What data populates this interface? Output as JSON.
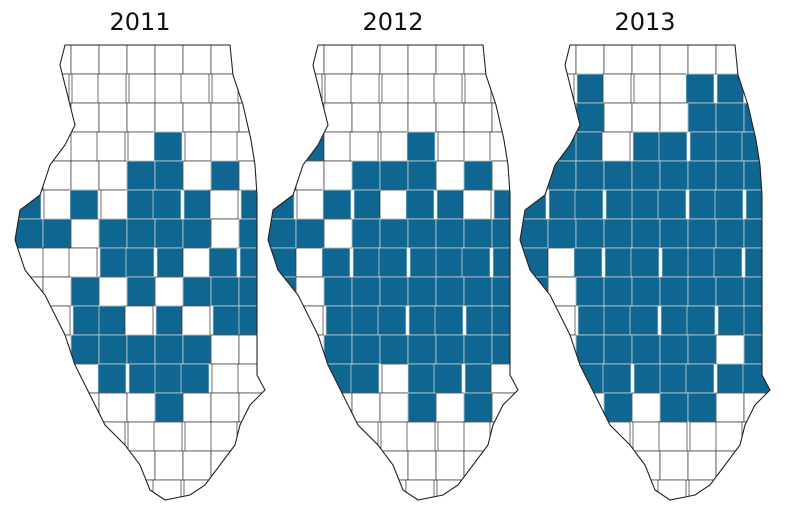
{
  "maps": [
    {
      "title": "2011"
    },
    {
      "title": "2012"
    },
    {
      "title": "2013"
    }
  ]
}
